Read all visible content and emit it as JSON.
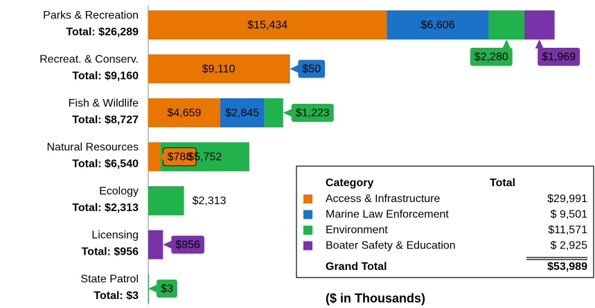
{
  "chart_data": {
    "type": "stacked-bar-horizontal",
    "categories": [
      "Parks & Recreation",
      "Recreat. & Conserv.",
      "Fish & Wildlife",
      "Natural Resources",
      "Ecology",
      "Licensing",
      "State Patrol"
    ],
    "category_totals": [
      "Total: $26,289",
      "Total: $9,160",
      "Total: $8,727",
      "Total: $6,540",
      "Total: $2,313",
      "Total: $956",
      "Total: $3"
    ],
    "series": [
      {
        "name": "Access & Infrastructure",
        "color": "#e87600",
        "values": [
          15434,
          9110,
          4659,
          788,
          null,
          null,
          null
        ],
        "value_labels": [
          "$15,434",
          "$9,110",
          "$4,659",
          "$788",
          null,
          null,
          null
        ]
      },
      {
        "name": "Marine Law Enforcement",
        "color": "#1a73c8",
        "values": [
          6606,
          50,
          2845,
          null,
          null,
          null,
          null
        ],
        "value_labels": [
          "$6,606",
          "$50",
          "$2,845",
          null,
          null,
          null,
          null
        ]
      },
      {
        "name": "Environment",
        "color": "#22b24c",
        "values": [
          2280,
          null,
          1223,
          5752,
          2313,
          null,
          3
        ],
        "value_labels": [
          "$2,280",
          null,
          "$1,223",
          "$5,752",
          "$2,313",
          null,
          "$3"
        ]
      },
      {
        "name": "Boater Safety & Education",
        "color": "#7a32a8",
        "values": [
          1969,
          null,
          null,
          null,
          null,
          956,
          null
        ],
        "value_labels": [
          "$1,969",
          null,
          null,
          null,
          null,
          "$956",
          null
        ]
      }
    ],
    "xlim": [
      0,
      28500
    ],
    "legend_table": {
      "header": [
        "Category",
        "Total"
      ],
      "totals": [
        "$29,991",
        "$ 9,501",
        "$11,571",
        "$ 2,925"
      ],
      "grand_total": [
        "Grand Total",
        "$53,989"
      ]
    },
    "note": "($ in Thousands)"
  }
}
